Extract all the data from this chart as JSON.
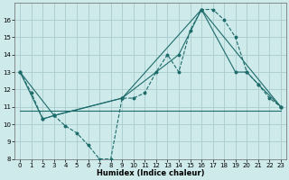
{
  "xlabel": "Humidex (Indice chaleur)",
  "background_color": "#ceeaea",
  "grid_color": "#aacccc",
  "line_color": "#1e6b6b",
  "xlim": [
    -0.5,
    23.5
  ],
  "ylim": [
    8,
    17
  ],
  "yticks": [
    8,
    9,
    10,
    11,
    12,
    13,
    14,
    15,
    16
  ],
  "xticks": [
    0,
    1,
    2,
    3,
    4,
    5,
    6,
    7,
    8,
    9,
    10,
    11,
    12,
    13,
    14,
    15,
    16,
    17,
    18,
    19,
    20,
    21,
    22,
    23
  ],
  "line1_x": [
    0,
    1,
    2,
    3,
    4,
    5,
    6,
    7,
    8,
    9,
    10,
    11,
    12,
    13,
    14,
    15,
    16,
    17,
    18,
    19,
    20,
    21,
    22,
    23
  ],
  "line1_y": [
    13,
    11.8,
    10.3,
    10.5,
    9.9,
    9.5,
    8.8,
    8.0,
    8.0,
    11.5,
    11.5,
    11.8,
    13.0,
    14.0,
    13.0,
    15.4,
    16.6,
    16.6,
    16.0,
    15.0,
    13.0,
    12.3,
    11.5,
    11.0
  ],
  "line2_x": [
    0,
    2,
    3,
    9,
    14,
    16,
    19,
    20,
    21,
    23
  ],
  "line2_y": [
    13,
    10.3,
    10.5,
    11.5,
    14.0,
    16.6,
    13.0,
    13.0,
    12.3,
    11.0
  ],
  "line3_x": [
    0,
    3,
    9,
    16,
    23
  ],
  "line3_y": [
    13,
    10.5,
    11.5,
    16.6,
    11.0
  ],
  "line4_x": [
    0,
    23
  ],
  "line4_y": [
    10.8,
    10.8
  ]
}
